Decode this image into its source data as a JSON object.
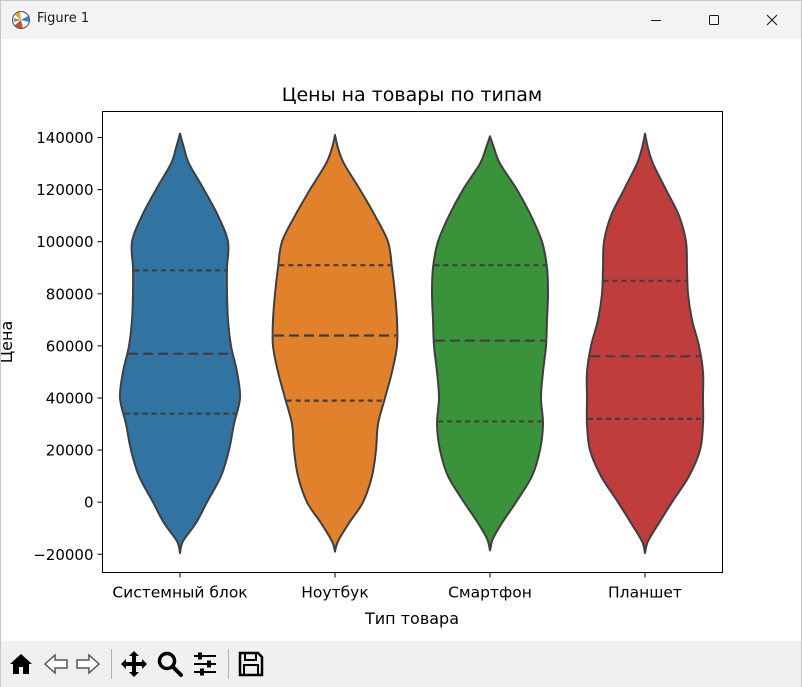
{
  "window": {
    "title": "Figure 1"
  },
  "toolbar": {
    "tools": [
      "home-icon",
      "back-icon",
      "forward-icon",
      "pan-icon",
      "zoom-icon",
      "configure-icon",
      "save-icon"
    ]
  },
  "chart_data": {
    "type": "violin",
    "title": "Цены на товары по типам",
    "xlabel": "Тип товара",
    "ylabel": "Цена",
    "ylim": [
      -27000,
      150000
    ],
    "yticks": [
      -20000,
      0,
      20000,
      40000,
      60000,
      80000,
      100000,
      120000,
      140000
    ],
    "ytick_labels": [
      "−20000",
      "0",
      "20000",
      "40000",
      "60000",
      "80000",
      "100000",
      "120000",
      "140000"
    ],
    "categories": [
      "Системный блок",
      "Ноутбук",
      "Смартфон",
      "Планшет"
    ],
    "colors": [
      "#3274a1",
      "#e1812c",
      "#3a923a",
      "#c03d3e"
    ],
    "series": [
      {
        "name": "Системный блок",
        "quartiles": [
          34000,
          57000,
          89000
        ],
        "density": [
          [
            -19500,
            0
          ],
          [
            -15000,
            3
          ],
          [
            -8000,
            16
          ],
          [
            0,
            27
          ],
          [
            10000,
            41
          ],
          [
            20000,
            49
          ],
          [
            30000,
            54
          ],
          [
            40000,
            60
          ],
          [
            50000,
            57
          ],
          [
            60000,
            51
          ],
          [
            70000,
            48
          ],
          [
            80000,
            47
          ],
          [
            90000,
            47
          ],
          [
            100000,
            48
          ],
          [
            110000,
            38
          ],
          [
            120000,
            24
          ],
          [
            130000,
            9
          ],
          [
            136000,
            4
          ],
          [
            141500,
            0
          ]
        ]
      },
      {
        "name": "Ноутбук",
        "quartiles": [
          39000,
          64000,
          91000
        ],
        "density": [
          [
            -19000,
            0
          ],
          [
            -15000,
            3
          ],
          [
            -8000,
            14
          ],
          [
            0,
            28
          ],
          [
            10000,
            37
          ],
          [
            20000,
            41
          ],
          [
            30000,
            43
          ],
          [
            40000,
            50
          ],
          [
            50000,
            57
          ],
          [
            60000,
            62
          ],
          [
            70000,
            62
          ],
          [
            80000,
            60
          ],
          [
            90000,
            57
          ],
          [
            100000,
            53
          ],
          [
            110000,
            40
          ],
          [
            120000,
            25
          ],
          [
            130000,
            9
          ],
          [
            136000,
            3
          ],
          [
            141000,
            0
          ]
        ]
      },
      {
        "name": "Смартфон",
        "quartiles": [
          31000,
          62000,
          91000
        ],
        "density": [
          [
            -18500,
            0
          ],
          [
            -14000,
            3
          ],
          [
            -8000,
            12
          ],
          [
            0,
            26
          ],
          [
            10000,
            42
          ],
          [
            20000,
            50
          ],
          [
            30000,
            53
          ],
          [
            40000,
            51
          ],
          [
            50000,
            53
          ],
          [
            60000,
            56
          ],
          [
            70000,
            57
          ],
          [
            80000,
            58
          ],
          [
            90000,
            57
          ],
          [
            100000,
            52
          ],
          [
            110000,
            41
          ],
          [
            120000,
            27
          ],
          [
            130000,
            10
          ],
          [
            136000,
            4
          ],
          [
            140500,
            0
          ]
        ]
      },
      {
        "name": "Планшет",
        "quartiles": [
          32000,
          56000,
          85000
        ],
        "density": [
          [
            -19500,
            0
          ],
          [
            -15000,
            3
          ],
          [
            -8000,
            14
          ],
          [
            0,
            27
          ],
          [
            10000,
            44
          ],
          [
            20000,
            55
          ],
          [
            30000,
            58
          ],
          [
            40000,
            58
          ],
          [
            50000,
            58
          ],
          [
            60000,
            54
          ],
          [
            70000,
            47
          ],
          [
            80000,
            43
          ],
          [
            90000,
            42
          ],
          [
            100000,
            41
          ],
          [
            110000,
            34
          ],
          [
            120000,
            21
          ],
          [
            130000,
            8
          ],
          [
            136000,
            3
          ],
          [
            141500,
            0
          ]
        ]
      }
    ]
  }
}
